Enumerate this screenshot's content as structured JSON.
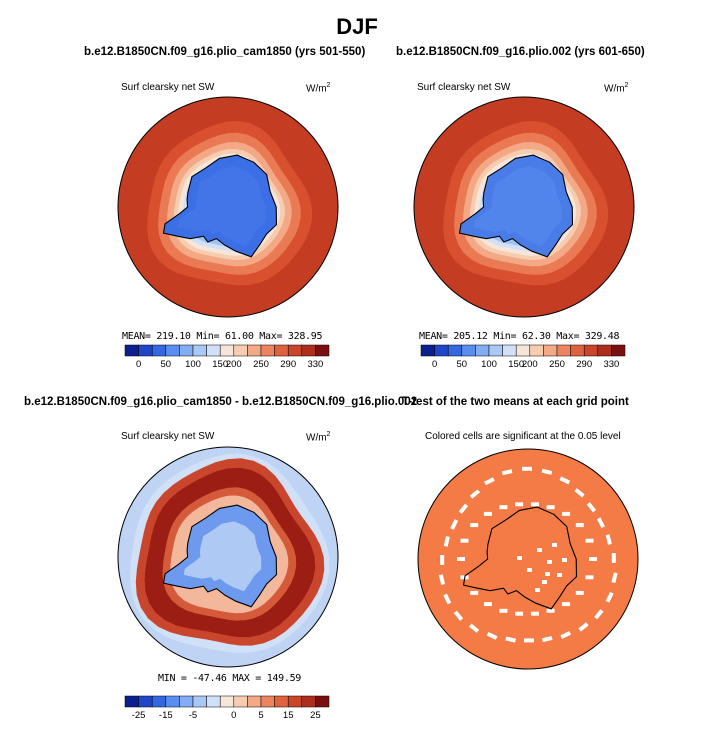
{
  "figure": {
    "title": "DJF"
  },
  "panels": {
    "top_left": {
      "title": "b.e12.B1850CN.f09_g16.plio_cam1850 (yrs 501-550)",
      "left_label": "Surf clearsky net SW",
      "units_base": "W/m",
      "units_exp": "2",
      "stats": "MEAN= 219.10  Min=  61.00  Max= 328.95"
    },
    "top_right": {
      "title": "b.e12.B1850CN.f09_g16.plio.002 (yrs 601-650)",
      "left_label": "Surf clearsky net SW",
      "units_base": "W/m",
      "units_exp": "2",
      "stats": "MEAN= 205.12  Min=  62.30  Max= 329.48"
    },
    "bottom_left": {
      "title": "b.e12.B1850CN.f09_g16.plio_cam1850 - b.e12.B1850CN.f09_g16.plio.002",
      "left_label": "Surf clearsky net SW",
      "units_base": "W/m",
      "units_exp": "2",
      "stats": "MIN = -47.46  MAX = 149.59"
    },
    "bottom_right": {
      "title": "T-test of the two means at each grid point",
      "subtitle": "Colored cells are significant at the 0.05 level"
    }
  },
  "chart_data": [
    {
      "type": "heatmap",
      "panel": "top_left",
      "projection": "south polar stereographic",
      "variable": "Surf clearsky net SW",
      "units": "W/m2",
      "mean": 219.1,
      "min": 61.0,
      "max": 328.95,
      "colorbar_ticks": [
        "0",
        "50",
        "100",
        "150",
        "200",
        "250",
        "290",
        "330"
      ],
      "colorbar_colors": [
        "#0b1f8f",
        "#1f45c8",
        "#3567e0",
        "#5a8df0",
        "#82adf2",
        "#aac8f4",
        "#cfe0f7",
        "#f6e6d9",
        "#f7cdb1",
        "#f3a886",
        "#ee8360",
        "#e0613f",
        "#c9452b",
        "#ad2e1d",
        "#7a0f0f"
      ]
    },
    {
      "type": "heatmap",
      "panel": "top_right",
      "projection": "south polar stereographic",
      "variable": "Surf clearsky net SW",
      "units": "W/m2",
      "mean": 205.12,
      "min": 62.3,
      "max": 329.48,
      "colorbar_ticks": [
        "0",
        "50",
        "100",
        "150",
        "200",
        "250",
        "290",
        "330"
      ],
      "colorbar_colors": [
        "#0b1f8f",
        "#1f45c8",
        "#3567e0",
        "#5a8df0",
        "#82adf2",
        "#aac8f4",
        "#cfe0f7",
        "#f6e6d9",
        "#f7cdb1",
        "#f3a886",
        "#ee8360",
        "#e0613f",
        "#c9452b",
        "#ad2e1d",
        "#7a0f0f"
      ]
    },
    {
      "type": "heatmap",
      "panel": "bottom_left",
      "projection": "south polar stereographic",
      "variable": "Surf clearsky net SW difference",
      "units": "W/m2",
      "min": -47.46,
      "max": 149.59,
      "colorbar_ticks": [
        "-25",
        "-15",
        "-5",
        "0",
        "5",
        "15",
        "25"
      ],
      "colorbar_colors": [
        "#0b1f8f",
        "#1f45c8",
        "#3567e0",
        "#5a8df0",
        "#82adf2",
        "#aac8f4",
        "#cfe0f7",
        "#f6e6d9",
        "#f7cdb1",
        "#f3a886",
        "#ee8360",
        "#e0613f",
        "#c9452b",
        "#ad2e1d",
        "#7a0f0f"
      ]
    },
    {
      "type": "heatmap",
      "panel": "bottom_right",
      "projection": "south polar stereographic",
      "variable": "T-test significance",
      "significance_level": 0.05,
      "significant_color": "#f47a46"
    }
  ]
}
